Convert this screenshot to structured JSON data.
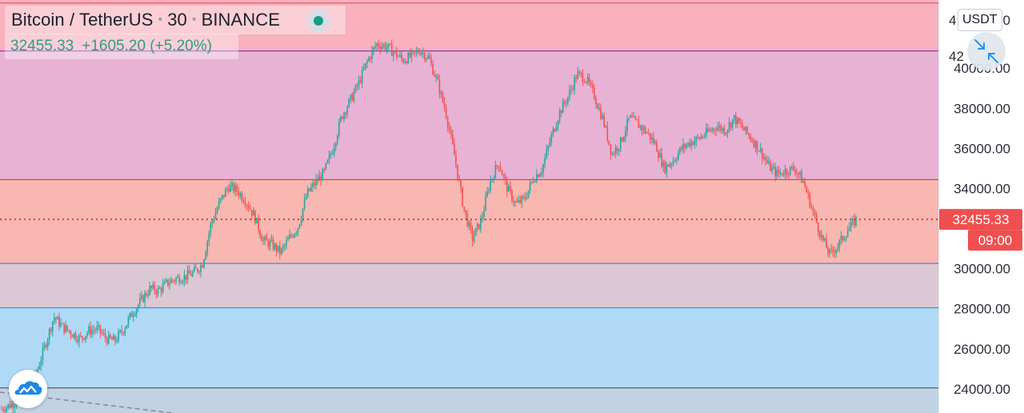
{
  "header": {
    "symbol": "Bitcoin / TetherUS",
    "interval": "30",
    "exchange": "BINANCE",
    "last_price": "32455.33",
    "change": "+1605.20 (+5.20%)",
    "change_color": "#2c9c85",
    "live_indicator_color": "#159e86"
  },
  "currency_button": "USDT",
  "icons": {
    "zoom": "collapse-arrows-icon",
    "logo": "tradingview-cloud-icon"
  },
  "colors": {
    "bull": "#26a69a",
    "bear": "#ef5350",
    "red_zone": "#f8b1bd",
    "magenta_zone": "#e8b2d4",
    "salmon_zone": "#f8b7b0",
    "gray_zone": "#dbc8d4",
    "blue_zone": "#b0d9f6",
    "bottom_zone": "#c1d2e4"
  },
  "chart_data": {
    "type": "candlestick",
    "ylim": [
      22800,
      43400
    ],
    "y_tick_labels": [
      "40000.00",
      "38000.00",
      "36000.00",
      "34000.00",
      "30000.00",
      "28000.00",
      "26000.00",
      "24000.00"
    ],
    "y_ticks": [
      40000,
      38000,
      36000,
      34000,
      30000,
      28000,
      26000,
      24000
    ],
    "partial_tick_labels": [
      "4…0",
      "42…"
    ],
    "last_price_label": "32455.33",
    "countdown_label": "09:00",
    "last_price": 32455.33,
    "levels": [
      {
        "price": 43250,
        "color": "#e45a68"
      },
      {
        "price": 40860,
        "color": "#8a3aa8"
      },
      {
        "price": 34440,
        "color": "#e53935"
      },
      {
        "price": 30260,
        "color": "#5c7dd6"
      },
      {
        "price": 28050,
        "color": "#3f8fd8"
      },
      {
        "price": 24050,
        "color": "#555555"
      }
    ],
    "zones": [
      {
        "from": 40860,
        "to": 43400,
        "color_key": "red_zone"
      },
      {
        "from": 34440,
        "to": 40860,
        "color_key": "magenta_zone"
      },
      {
        "from": 30260,
        "to": 34440,
        "color_key": "salmon_zone"
      },
      {
        "from": 28050,
        "to": 30260,
        "color_key": "gray_zone"
      },
      {
        "from": 24050,
        "to": 28050,
        "color_key": "blue_zone"
      },
      {
        "from": 22800,
        "to": 24050,
        "color_key": "bottom_zone"
      }
    ],
    "price_path": [
      23000,
      23200,
      23500,
      24000,
      24800,
      26200,
      27600,
      27100,
      26800,
      26500,
      26900,
      27000,
      26500,
      26400,
      27000,
      27800,
      28400,
      29000,
      28900,
      29300,
      29500,
      29600,
      29800,
      30200,
      32200,
      33300,
      34100,
      33900,
      33400,
      32600,
      31400,
      31200,
      30800,
      31500,
      32100,
      33700,
      34300,
      34800,
      36000,
      37600,
      38400,
      39300,
      40400,
      41200,
      41100,
      40800,
      40400,
      40600,
      40900,
      40500,
      39300,
      37700,
      35500,
      33000,
      31500,
      32400,
      34300,
      35300,
      34000,
      33200,
      33500,
      34500,
      35000,
      36500,
      37800,
      38600,
      39700,
      39500,
      38600,
      37400,
      35700,
      36300,
      37500,
      37200,
      36800,
      36200,
      35000,
      35400,
      36000,
      36300,
      36500,
      36800,
      37100,
      36900,
      37500,
      37000,
      36500,
      35900,
      35100,
      34700,
      34900,
      35000,
      34300,
      32900,
      31600,
      30700,
      31200,
      31900,
      32455
    ]
  }
}
